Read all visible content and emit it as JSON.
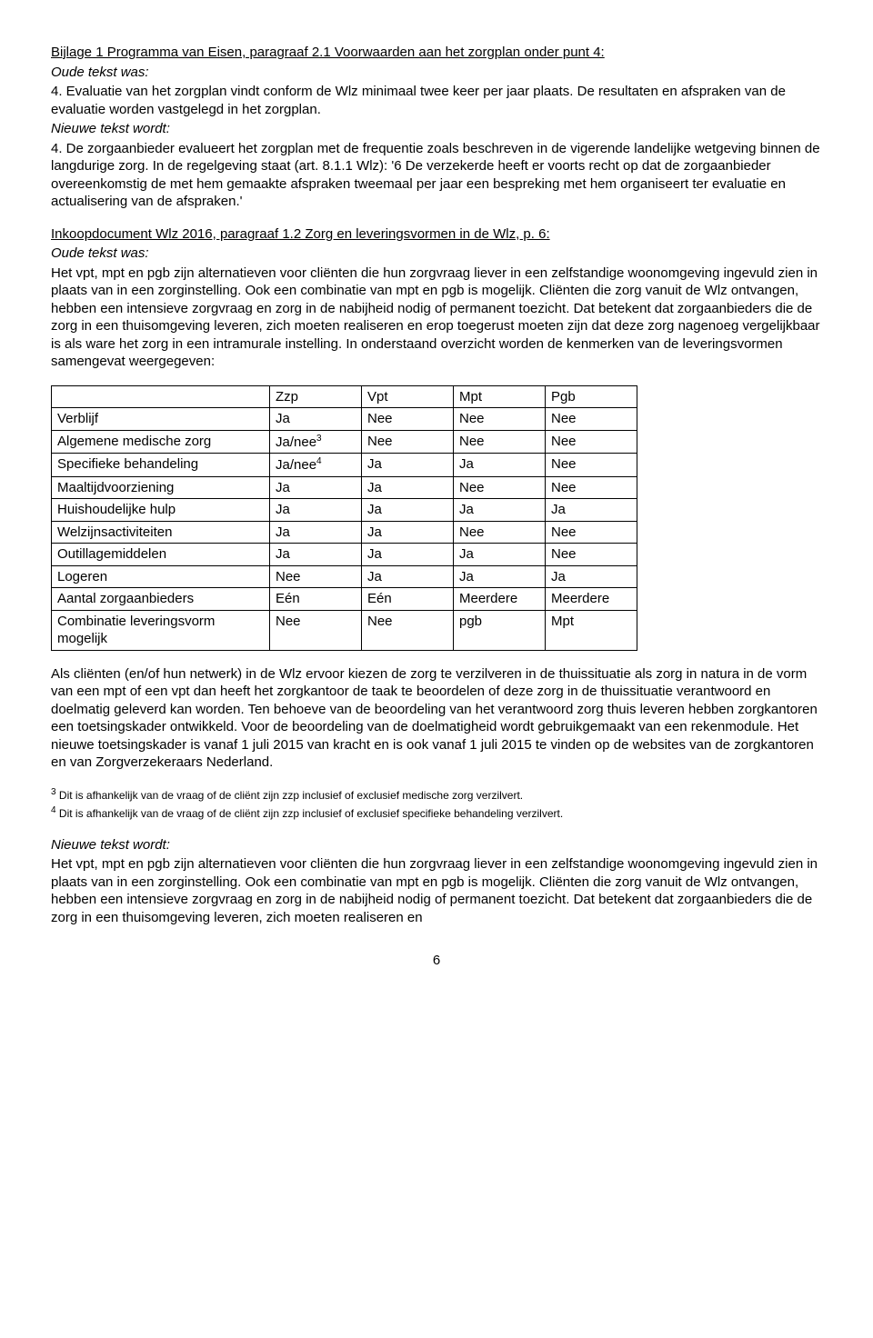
{
  "section1": {
    "title": "Bijlage 1 Programma van Eisen, paragraaf 2.1 Voorwaarden aan het zorgplan onder punt 4:",
    "oude_label": "Oude tekst was:",
    "oude_text": "4. Evaluatie van het zorgplan vindt conform de Wlz minimaal twee keer per jaar plaats. De resultaten en afspraken van de evaluatie worden vastgelegd in het zorgplan.",
    "nieuwe_label": "Nieuwe tekst wordt:",
    "nieuwe_text": "4. De zorgaanbieder evalueert het zorgplan met de frequentie zoals beschreven in de vigerende landelijke wetgeving binnen de langdurige zorg. In de regelgeving staat (art. 8.1.1 Wlz): '6 De verzekerde heeft er voorts recht op dat de zorgaanbieder overeenkomstig de met hem gemaakte afspraken tweemaal per jaar een bespreking met hem organiseert ter evaluatie en actualisering van de afspraken.'"
  },
  "section2": {
    "title": "Inkoopdocument Wlz 2016, paragraaf 1.2 Zorg en leveringsvormen in de Wlz, p. 6:",
    "oude_label": "Oude tekst was:",
    "oude_text": "Het vpt, mpt en pgb zijn alternatieven voor cliënten die hun zorgvraag liever in een zelfstandige woonomgeving ingevuld zien in plaats van in een zorginstelling. Ook een combinatie van mpt en pgb is mogelijk. Cliënten die zorg vanuit de Wlz ontvangen, hebben een intensieve zorgvraag en zorg in de nabijheid nodig of permanent toezicht. Dat betekent dat zorgaanbieders die de zorg in een thuisomgeving leveren, zich moeten realiseren en erop toegerust moeten zijn dat deze zorg nagenoeg vergelijkbaar is als ware het zorg in een intramurale instelling. In onderstaand overzicht worden de kenmerken van de leveringsvormen samengevat weergegeven:"
  },
  "table": {
    "headers": [
      "",
      "Zzp",
      "Vpt",
      "Mpt",
      "Pgb"
    ],
    "rows": [
      {
        "label": "Verblijf",
        "cells": [
          "Ja",
          "Nee",
          "Nee",
          "Nee"
        ],
        "sup": null
      },
      {
        "label": "Algemene medische zorg",
        "cells": [
          "Ja/nee",
          "Nee",
          "Nee",
          "Nee"
        ],
        "sup": "3"
      },
      {
        "label": "Specifieke behandeling",
        "cells": [
          "Ja/nee",
          "Ja",
          "Ja",
          "Nee"
        ],
        "sup": "4"
      },
      {
        "label": "Maaltijdvoorziening",
        "cells": [
          "Ja",
          "Ja",
          "Nee",
          "Nee"
        ],
        "sup": null
      },
      {
        "label": "Huishoudelijke hulp",
        "cells": [
          "Ja",
          "Ja",
          "Ja",
          "Ja"
        ],
        "sup": null
      },
      {
        "label": "Welzijnsactiviteiten",
        "cells": [
          "Ja",
          "Ja",
          "Nee",
          "Nee"
        ],
        "sup": null
      },
      {
        "label": "Outillagemiddelen",
        "cells": [
          "Ja",
          "Ja",
          "Ja",
          "Nee"
        ],
        "sup": null
      },
      {
        "label": "Logeren",
        "cells": [
          "Nee",
          "Ja",
          "Ja",
          "Ja"
        ],
        "sup": null
      },
      {
        "label": "Aantal zorgaanbieders",
        "cells": [
          "Eén",
          "Eén",
          "Meerdere",
          "Meerdere"
        ],
        "sup": null
      },
      {
        "label": "Combinatie leveringsvorm mogelijk",
        "cells": [
          "Nee",
          "Nee",
          "pgb",
          "Mpt"
        ],
        "sup": null
      }
    ]
  },
  "para_after_table": "Als cliënten (en/of hun netwerk) in de Wlz ervoor kiezen de zorg te verzilveren in de thuissituatie als zorg in natura in de vorm van een mpt of een vpt dan heeft het zorgkantoor de taak te beoordelen of deze zorg in de thuissituatie verantwoord en doelmatig geleverd kan worden. Ten behoeve van de beoordeling van het verantwoord zorg thuis leveren hebben zorgkantoren een toetsingskader ontwikkeld. Voor de beoordeling van de doelmatigheid wordt gebruikgemaakt van een rekenmodule. Het nieuwe toetsingskader is vanaf 1 juli 2015 van kracht en is ook vanaf 1 juli 2015 te vinden op de websites van de zorgkantoren en van Zorgverzekeraars Nederland.",
  "footnotes": {
    "f3_num": "3",
    "f3_text": " Dit is afhankelijk van de vraag of de cliënt zijn zzp inclusief of exclusief medische zorg verzilvert.",
    "f4_num": "4",
    "f4_text": " Dit is afhankelijk van de vraag of de cliënt zijn zzp inclusief of exclusief  specifieke behandeling verzilvert."
  },
  "section3": {
    "nieuwe_label": "Nieuwe tekst wordt:",
    "nieuwe_text": "Het vpt, mpt en pgb zijn alternatieven voor cliënten die hun zorgvraag liever in een zelfstandige woonomgeving ingevuld zien in plaats van in een zorginstelling. Ook een combinatie van mpt en pgb is mogelijk. Cliënten die zorg vanuit de Wlz ontvangen, hebben een intensieve zorgvraag en zorg in de nabijheid nodig of permanent toezicht. Dat betekent dat zorgaanbieders die de zorg in een thuisomgeving leveren, zich moeten realiseren en"
  },
  "page_number": "6"
}
